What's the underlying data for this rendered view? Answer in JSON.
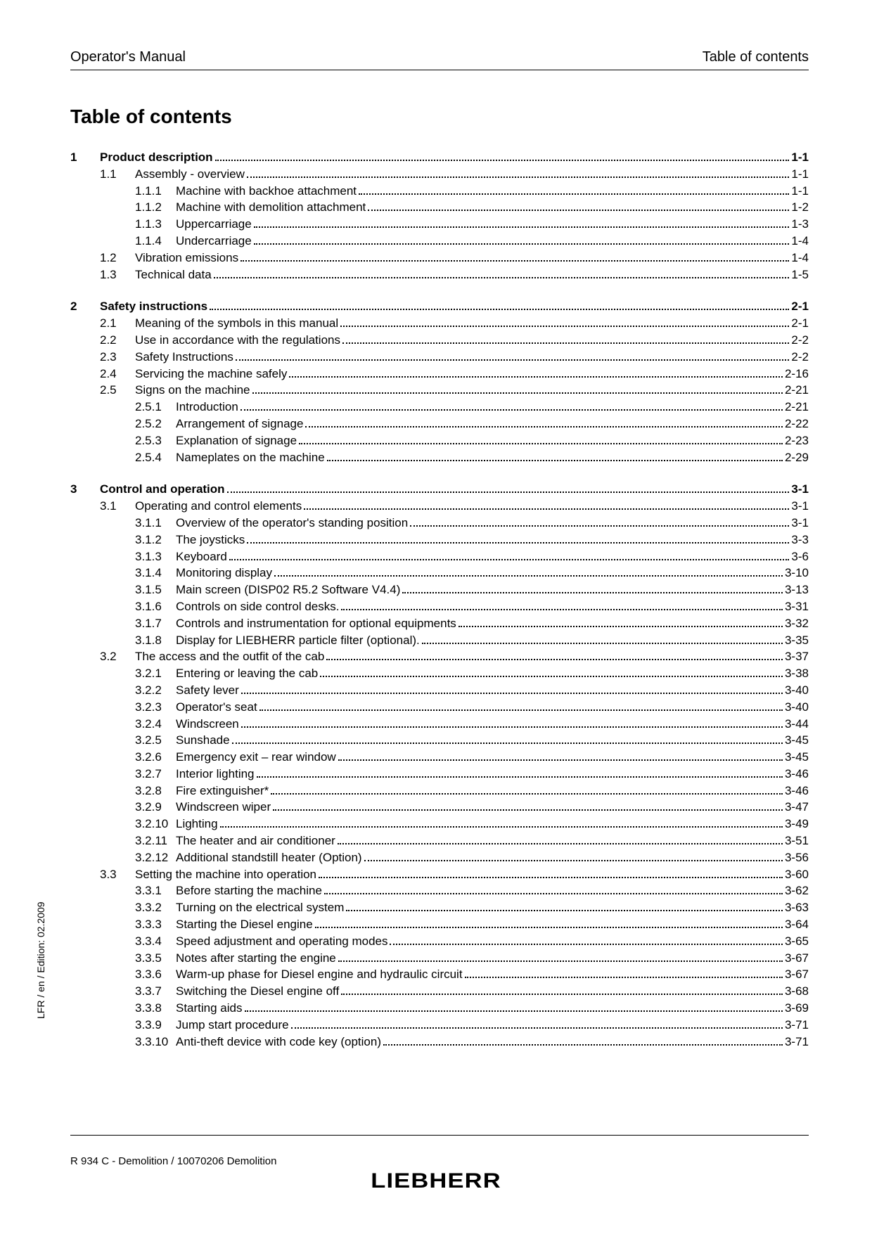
{
  "header": {
    "left": "Operator's Manual",
    "right": "Table of contents"
  },
  "title": "Table of contents",
  "sideText": "LFR / en / Edition: 02.2009",
  "footer": "R 934 C - Demolition / 10070206 Demolition",
  "logo": "LIEBHERR",
  "toc": [
    {
      "num": "1",
      "title": "Product description",
      "page": "1-1",
      "subs": [
        {
          "num": "1.1",
          "title": "Assembly - overview",
          "page": "1-1",
          "subs": [
            {
              "num": "1.1.1",
              "title": "Machine with backhoe attachment",
              "page": "1-1"
            },
            {
              "num": "1.1.2",
              "title": "Machine with demolition attachment",
              "page": "1-2"
            },
            {
              "num": "1.1.3",
              "title": "Uppercarriage",
              "page": "1-3"
            },
            {
              "num": "1.1.4",
              "title": "Undercarriage",
              "page": "1-4"
            }
          ]
        },
        {
          "num": "1.2",
          "title": "Vibration emissions",
          "page": "1-4",
          "subs": []
        },
        {
          "num": "1.3",
          "title": "Technical data",
          "page": "1-5",
          "subs": []
        }
      ]
    },
    {
      "num": "2",
      "title": "Safety instructions",
      "page": "2-1",
      "subs": [
        {
          "num": "2.1",
          "title": "Meaning of the symbols in this manual",
          "page": "2-1",
          "subs": []
        },
        {
          "num": "2.2",
          "title": "Use in accordance with the regulations",
          "page": "2-2",
          "subs": []
        },
        {
          "num": "2.3",
          "title": "Safety Instructions",
          "page": "2-2",
          "subs": []
        },
        {
          "num": "2.4",
          "title": "Servicing the machine safely",
          "page": "2-16",
          "subs": []
        },
        {
          "num": "2.5",
          "title": "Signs on the machine",
          "page": "2-21",
          "subs": [
            {
              "num": "2.5.1",
              "title": "Introduction",
              "page": "2-21"
            },
            {
              "num": "2.5.2",
              "title": "Arrangement of signage",
              "page": "2-22"
            },
            {
              "num": "2.5.3",
              "title": "Explanation of signage",
              "page": "2-23"
            },
            {
              "num": "2.5.4",
              "title": "Nameplates on the machine",
              "page": "2-29"
            }
          ]
        }
      ]
    },
    {
      "num": "3",
      "title": "Control and operation",
      "page": "3-1",
      "subs": [
        {
          "num": "3.1",
          "title": "Operating and control elements",
          "page": "3-1",
          "subs": [
            {
              "num": "3.1.1",
              "title": "Overview of the operator's standing position",
              "page": "3-1"
            },
            {
              "num": "3.1.2",
              "title": "The joysticks",
              "page": "3-3"
            },
            {
              "num": "3.1.3",
              "title": "Keyboard",
              "page": "3-6"
            },
            {
              "num": "3.1.4",
              "title": "Monitoring display",
              "page": "3-10"
            },
            {
              "num": "3.1.5",
              "title": "Main screen (DISP02 R5.2 Software V4.4)",
              "page": "3-13"
            },
            {
              "num": "3.1.6",
              "title": "Controls on side control desks.",
              "page": "3-31"
            },
            {
              "num": "3.1.7",
              "title": "Controls and instrumentation for optional equipments",
              "page": "3-32"
            },
            {
              "num": "3.1.8",
              "title": "Display for LIEBHERR particle filter (optional).",
              "page": "3-35"
            }
          ]
        },
        {
          "num": "3.2",
          "title": "The access and the outfit of the cab",
          "page": "3-37",
          "subs": [
            {
              "num": "3.2.1",
              "title": "Entering or leaving the cab",
              "page": "3-38"
            },
            {
              "num": "3.2.2",
              "title": "Safety lever",
              "page": "3-40"
            },
            {
              "num": "3.2.3",
              "title": "Operator's seat",
              "page": "3-40"
            },
            {
              "num": "3.2.4",
              "title": "Windscreen",
              "page": "3-44"
            },
            {
              "num": "3.2.5",
              "title": "Sunshade",
              "page": "3-45"
            },
            {
              "num": "3.2.6",
              "title": "Emergency exit – rear window",
              "page": "3-45"
            },
            {
              "num": "3.2.7",
              "title": "Interior lighting",
              "page": "3-46"
            },
            {
              "num": "3.2.8",
              "title": "Fire extinguisher*",
              "page": "3-46"
            },
            {
              "num": "3.2.9",
              "title": "Windscreen wiper",
              "page": "3-47"
            },
            {
              "num": "3.2.10",
              "title": "Lighting",
              "page": "3-49"
            },
            {
              "num": "3.2.11",
              "title": "The heater and air conditioner",
              "page": "3-51"
            },
            {
              "num": "3.2.12",
              "title": "Additional standstill heater (Option)",
              "page": "3-56"
            }
          ]
        },
        {
          "num": "3.3",
          "title": "Setting the machine into operation",
          "page": "3-60",
          "subs": [
            {
              "num": "3.3.1",
              "title": "Before starting the machine",
              "page": "3-62"
            },
            {
              "num": "3.3.2",
              "title": "Turning on the electrical system",
              "page": "3-63"
            },
            {
              "num": "3.3.3",
              "title": "Starting the Diesel engine",
              "page": "3-64"
            },
            {
              "num": "3.3.4",
              "title": "Speed adjustment and operating modes",
              "page": "3-65"
            },
            {
              "num": "3.3.5",
              "title": "Notes after starting the engine",
              "page": "3-67"
            },
            {
              "num": "3.3.6",
              "title": "Warm-up phase for Diesel engine and hydraulic circuit",
              "page": "3-67"
            },
            {
              "num": "3.3.7",
              "title": "Switching the Diesel engine off",
              "page": "3-68"
            },
            {
              "num": "3.3.8",
              "title": "Starting aids",
              "page": "3-69"
            },
            {
              "num": "3.3.9",
              "title": "Jump start procedure",
              "page": "3-71"
            },
            {
              "num": "3.3.10",
              "title": "Anti-theft device with code key (option)",
              "page": "3-71"
            }
          ]
        }
      ]
    }
  ]
}
